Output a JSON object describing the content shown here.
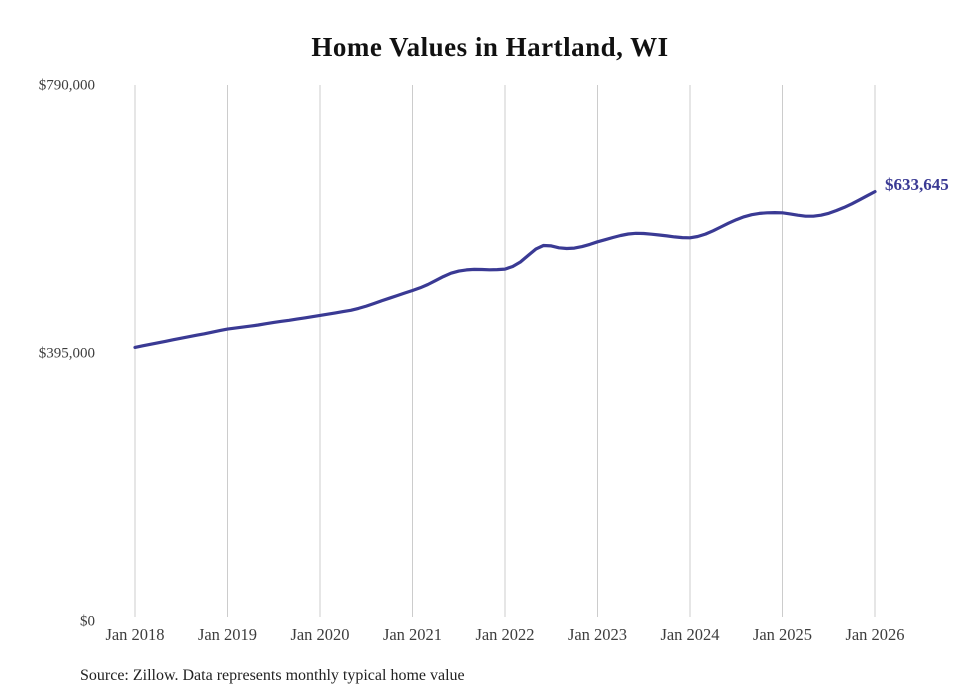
{
  "chart": {
    "title": "Home Values in Hartland, WI",
    "end_value_label": "$633,645",
    "source_note": "Source: Zillow. Data represents monthly typical home value",
    "colors": {
      "line": "#3a3a94",
      "end_label": "#3a3a94",
      "grid": "#cccccc",
      "tick_text": "#3d3d3d",
      "title_text": "#111111"
    }
  },
  "chart_data": {
    "type": "line",
    "title": "Home Values in Hartland, WI",
    "xlabel": "",
    "ylabel": "",
    "ylim": [
      0,
      790000
    ],
    "y_ticks": [
      790000,
      395000,
      0
    ],
    "y_tick_labels": [
      "$790,000",
      "$395,000",
      "$0"
    ],
    "x_tick_labels": [
      "Jan 2018",
      "Jan 2019",
      "Jan 2020",
      "Jan 2021",
      "Jan 2022",
      "Jan 2023",
      "Jan 2024",
      "Jan 2025",
      "Jan 2026"
    ],
    "grid": "vertical-only",
    "legend": "none",
    "end_value": 633645,
    "series": [
      {
        "name": "Monthly typical home value",
        "months": [
          "2018-01",
          "2018-02",
          "2018-03",
          "2018-04",
          "2018-05",
          "2018-06",
          "2018-07",
          "2018-08",
          "2018-09",
          "2018-10",
          "2018-11",
          "2018-12",
          "2019-01",
          "2019-02",
          "2019-03",
          "2019-04",
          "2019-05",
          "2019-06",
          "2019-07",
          "2019-08",
          "2019-09",
          "2019-10",
          "2019-11",
          "2019-12",
          "2020-01",
          "2020-02",
          "2020-03",
          "2020-04",
          "2020-05",
          "2020-06",
          "2020-07",
          "2020-08",
          "2020-09",
          "2020-10",
          "2020-11",
          "2020-12",
          "2021-01",
          "2021-02",
          "2021-03",
          "2021-04",
          "2021-05",
          "2021-06",
          "2021-07",
          "2021-08",
          "2021-09",
          "2021-10",
          "2021-11",
          "2021-12",
          "2022-01",
          "2022-02",
          "2022-03",
          "2022-04",
          "2022-05",
          "2022-06",
          "2022-07",
          "2022-08",
          "2022-09",
          "2022-10",
          "2022-11",
          "2022-12",
          "2023-01",
          "2023-02",
          "2023-03",
          "2023-04",
          "2023-05",
          "2023-06",
          "2023-07",
          "2023-08",
          "2023-09",
          "2023-10",
          "2023-11",
          "2023-12",
          "2024-01",
          "2024-02",
          "2024-03",
          "2024-04",
          "2024-05",
          "2024-06",
          "2024-07",
          "2024-08",
          "2024-09",
          "2024-10",
          "2024-11",
          "2024-12",
          "2025-01",
          "2025-02",
          "2025-03",
          "2025-04",
          "2025-05",
          "2025-06",
          "2025-07",
          "2025-08",
          "2025-09",
          "2025-10",
          "2025-11",
          "2025-12",
          "2026-01"
        ],
        "values": [
          404000,
          406300,
          408600,
          410800,
          413000,
          415300,
          417600,
          419800,
          421900,
          424100,
          426400,
          428700,
          431000,
          432400,
          433900,
          435400,
          437000,
          438900,
          440900,
          442400,
          443900,
          445700,
          447500,
          449300,
          451100,
          452900,
          454800,
          456700,
          458700,
          461400,
          464900,
          468700,
          472600,
          476500,
          480300,
          484100,
          487900,
          491900,
          496700,
          502400,
          508300,
          513300,
          516500,
          518200,
          519000,
          518800,
          518300,
          518600,
          519400,
          523200,
          529900,
          539400,
          548800,
          554200,
          553600,
          550800,
          549700,
          550400,
          552500,
          555800,
          559700,
          562800,
          565900,
          568900,
          571200,
          572100,
          571800,
          570900,
          569700,
          568300,
          566900,
          565800,
          565500,
          567400,
          571000,
          575900,
          581400,
          587000,
          592200,
          596500,
          599600,
          601500,
          602400,
          602700,
          602400,
          600800,
          598900,
          597400,
          597300,
          598800,
          601700,
          605700,
          610400,
          615700,
          621500,
          627600,
          633645
        ]
      }
    ]
  }
}
